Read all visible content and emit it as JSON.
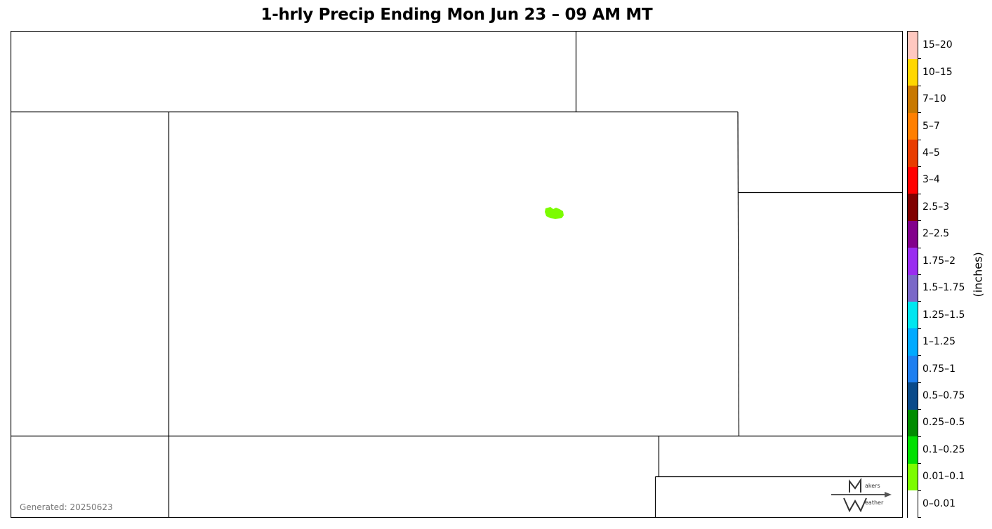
{
  "title": "1-hrly Precip Ending Mon Jun 23 – 09 AM MT",
  "generated": "Generated: 20250623",
  "logo": {
    "top_text": "akers",
    "bottom_text": "eather",
    "icon": "makers-weather-logo-icon"
  },
  "colorbar": {
    "unit_label": "(inches)",
    "bins": [
      {
        "label": "0–0.01",
        "color": "#ffffff"
      },
      {
        "label": "0.01–0.1",
        "color": "#7cfc00"
      },
      {
        "label": "0.1–0.25",
        "color": "#00e000"
      },
      {
        "label": "0.25–0.5",
        "color": "#008c00"
      },
      {
        "label": "0.5–0.75",
        "color": "#0a4a8a"
      },
      {
        "label": "0.75–1",
        "color": "#1e7ff0"
      },
      {
        "label": "1–1.25",
        "color": "#00aaff"
      },
      {
        "label": "1.25–1.5",
        "color": "#00e6f0"
      },
      {
        "label": "1.5–1.75",
        "color": "#7a68c8"
      },
      {
        "label": "1.75–2",
        "color": "#9a2cf0"
      },
      {
        "label": "2–2.5",
        "color": "#82008c"
      },
      {
        "label": "2.5–3",
        "color": "#800000"
      },
      {
        "label": "3–4",
        "color": "#ff0000"
      },
      {
        "label": "4–5",
        "color": "#e83c00"
      },
      {
        "label": "5–7",
        "color": "#ff7f00"
      },
      {
        "label": "7–10",
        "color": "#c87800"
      },
      {
        "label": "10–15",
        "color": "#ffd700"
      },
      {
        "label": "15–20",
        "color": "#ffc8c0"
      }
    ]
  },
  "precip_cells": [
    {
      "bin": "0.01–0.1",
      "color": "#7cfc00"
    }
  ]
}
